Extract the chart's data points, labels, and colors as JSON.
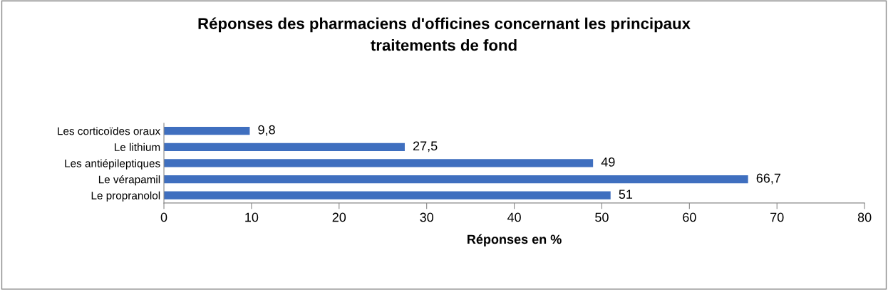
{
  "chart_data": {
    "type": "bar",
    "orientation": "horizontal",
    "title": "Réponses des pharmaciens d'officines concernant les principaux\ntraitements de fond",
    "xlabel": "Réponses en %",
    "categories": [
      "Les corticoïdes oraux",
      "Le lithium",
      "Les antiépileptiques",
      "Le vérapamil",
      "Le propranolol"
    ],
    "values": [
      9.8,
      27.5,
      49,
      66.7,
      51
    ],
    "value_labels": [
      "9,8",
      "27,5",
      "49",
      "66,7",
      "51"
    ],
    "color": "#3f6fbf",
    "xlim": [
      0,
      80
    ],
    "xticks": [
      0,
      10,
      20,
      30,
      40,
      50,
      60,
      70,
      80
    ],
    "grid": false,
    "legend": false
  }
}
